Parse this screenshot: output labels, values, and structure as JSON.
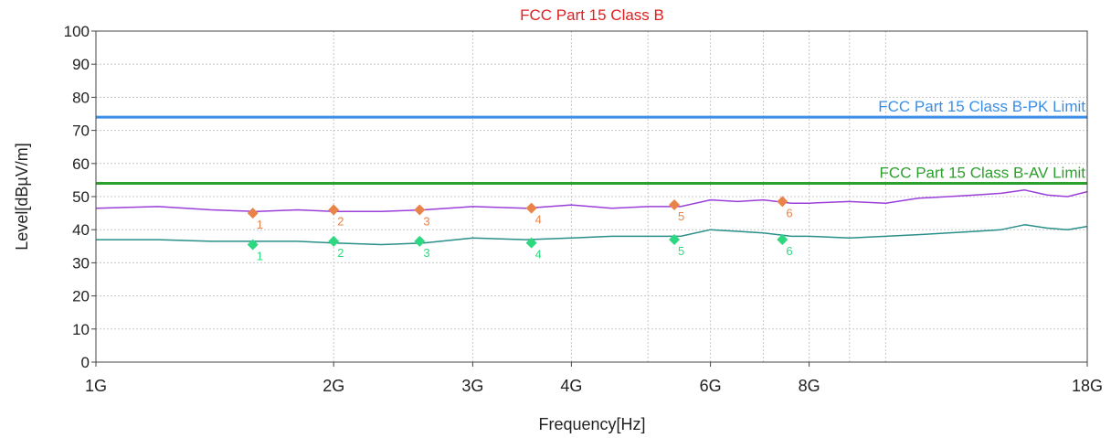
{
  "chart_data": {
    "type": "line",
    "title": "FCC Part 15 Class B",
    "xlabel": "Frequency[Hz]",
    "ylabel": "Level[dBµV/m]",
    "x_scale": "log",
    "xlim": [
      1000000000,
      18000000000
    ],
    "ylim": [
      0,
      100
    ],
    "grid": true,
    "y_ticks": [
      {
        "value": 0,
        "label": "0"
      },
      {
        "value": 10,
        "label": "10"
      },
      {
        "value": 20,
        "label": "20"
      },
      {
        "value": 30,
        "label": "30"
      },
      {
        "value": 40,
        "label": "40"
      },
      {
        "value": 50,
        "label": "50"
      },
      {
        "value": 60,
        "label": "60"
      },
      {
        "value": 70,
        "label": "70"
      },
      {
        "value": 80,
        "label": "80"
      },
      {
        "value": 90,
        "label": "90"
      },
      {
        "value": 100,
        "label": "100"
      }
    ],
    "x_ticks": [
      {
        "value": 1000000000,
        "label": "1G"
      },
      {
        "value": 2000000000,
        "label": "2G"
      },
      {
        "value": 3000000000,
        "label": "3G"
      },
      {
        "value": 4000000000,
        "label": "4G"
      },
      {
        "value": 6000000000,
        "label": "6G"
      },
      {
        "value": 8000000000,
        "label": "8G"
      },
      {
        "value": 18000000000,
        "label": "18G"
      }
    ],
    "x_gridlines": [
      1000000000,
      2000000000,
      3000000000,
      4000000000,
      5000000000,
      6000000000,
      7000000000,
      8000000000,
      9000000000,
      10000000000,
      18000000000
    ],
    "limit_lines": [
      {
        "label": "FCC Part 15 Class B-PK Limit",
        "value": 74,
        "color": "#3a8ee6"
      },
      {
        "label": "FCC Part 15 Class B-AV Limit",
        "value": 54,
        "color": "#2ca02c"
      }
    ],
    "series": [
      {
        "color": "#9b3fd9",
        "x": [
          1000000000,
          1200000000,
          1400000000,
          1600000000,
          1800000000,
          2000000000,
          2300000000,
          2600000000,
          3000000000,
          3500000000,
          4000000000,
          4500000000,
          5000000000,
          5500000000,
          6000000000,
          6500000000,
          7000000000,
          7600000000,
          8000000000,
          9000000000,
          10000000000,
          11000000000,
          12000000000,
          13000000000,
          14000000000,
          15000000000,
          16000000000,
          17000000000,
          18000000000
        ],
        "y": [
          46.5,
          47.0,
          46.0,
          45.5,
          46.0,
          45.5,
          45.5,
          46.0,
          47.0,
          46.5,
          47.5,
          46.5,
          47.0,
          47.0,
          49.0,
          48.5,
          49.0,
          48.0,
          48.0,
          48.5,
          48.0,
          49.5,
          50.0,
          50.5,
          51.0,
          52.0,
          50.5,
          50.0,
          51.5
        ]
      },
      {
        "color": "#2a8f8a",
        "x": [
          1000000000,
          1200000000,
          1400000000,
          1600000000,
          1800000000,
          2000000000,
          2300000000,
          2600000000,
          3000000000,
          3500000000,
          4000000000,
          4500000000,
          5000000000,
          5500000000,
          6000000000,
          6500000000,
          7000000000,
          7600000000,
          8000000000,
          9000000000,
          10000000000,
          11000000000,
          12000000000,
          13000000000,
          14000000000,
          15000000000,
          16000000000,
          17000000000,
          18000000000
        ],
        "y": [
          37.0,
          37.0,
          36.5,
          36.5,
          36.5,
          36.0,
          35.5,
          36.0,
          37.5,
          37.0,
          37.5,
          38.0,
          38.0,
          38.0,
          40.0,
          39.5,
          39.0,
          38.0,
          38.0,
          37.5,
          38.0,
          38.5,
          39.0,
          39.5,
          40.0,
          41.5,
          40.5,
          40.0,
          41.0
        ]
      }
    ],
    "markers": [
      {
        "series": "peak",
        "label": "1",
        "x": 1580000000,
        "y": 45.0,
        "color": "#e8844a"
      },
      {
        "series": "peak",
        "label": "2",
        "x": 2000000000,
        "y": 46.0,
        "color": "#e8844a"
      },
      {
        "series": "peak",
        "label": "3",
        "x": 2570000000,
        "y": 46.0,
        "color": "#e8844a"
      },
      {
        "series": "peak",
        "label": "4",
        "x": 3560000000,
        "y": 46.5,
        "color": "#e8844a"
      },
      {
        "series": "peak",
        "label": "5",
        "x": 5400000000,
        "y": 47.5,
        "color": "#e8844a"
      },
      {
        "series": "peak",
        "label": "6",
        "x": 7400000000,
        "y": 48.5,
        "color": "#e8844a"
      },
      {
        "series": "avg",
        "label": "1",
        "x": 1580000000,
        "y": 35.5,
        "color": "#2ed880"
      },
      {
        "series": "avg",
        "label": "2",
        "x": 2000000000,
        "y": 36.5,
        "color": "#2ed880"
      },
      {
        "series": "avg",
        "label": "3",
        "x": 2570000000,
        "y": 36.5,
        "color": "#2ed880"
      },
      {
        "series": "avg",
        "label": "4",
        "x": 3560000000,
        "y": 36.0,
        "color": "#2ed880"
      },
      {
        "series": "avg",
        "label": "5",
        "x": 5400000000,
        "y": 37.0,
        "color": "#2ed880"
      },
      {
        "series": "avg",
        "label": "6",
        "x": 7400000000,
        "y": 37.0,
        "color": "#2ed880"
      }
    ],
    "colors": {
      "title": "#e02020",
      "axis_text": "#222222",
      "grid": "#c8c8c8",
      "axis": "#444444"
    }
  }
}
